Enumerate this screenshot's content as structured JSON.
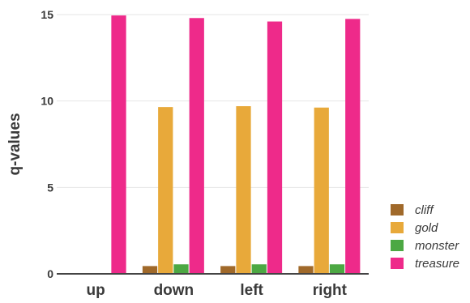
{
  "chart_data": {
    "type": "bar",
    "categories": [
      "up",
      "down",
      "left",
      "right"
    ],
    "ylabel": "q-values",
    "xlabel": "",
    "ylim": [
      0,
      15
    ],
    "yticks": [
      0,
      5,
      10,
      15
    ],
    "grid": true,
    "legend_position": "bottom-right",
    "series": [
      {
        "name": "cliff",
        "color": "#a0692a",
        "values": [
          0.03,
          0.45,
          0.45,
          0.45
        ]
      },
      {
        "name": "gold",
        "color": "#e8a93a",
        "values": [
          0.03,
          9.65,
          9.7,
          9.62
        ]
      },
      {
        "name": "monster",
        "color": "#4ca843",
        "values": [
          0.03,
          0.55,
          0.55,
          0.55
        ]
      },
      {
        "name": "treasure",
        "color": "#ee2a8a",
        "values": [
          14.95,
          14.8,
          14.6,
          14.75
        ]
      }
    ]
  }
}
